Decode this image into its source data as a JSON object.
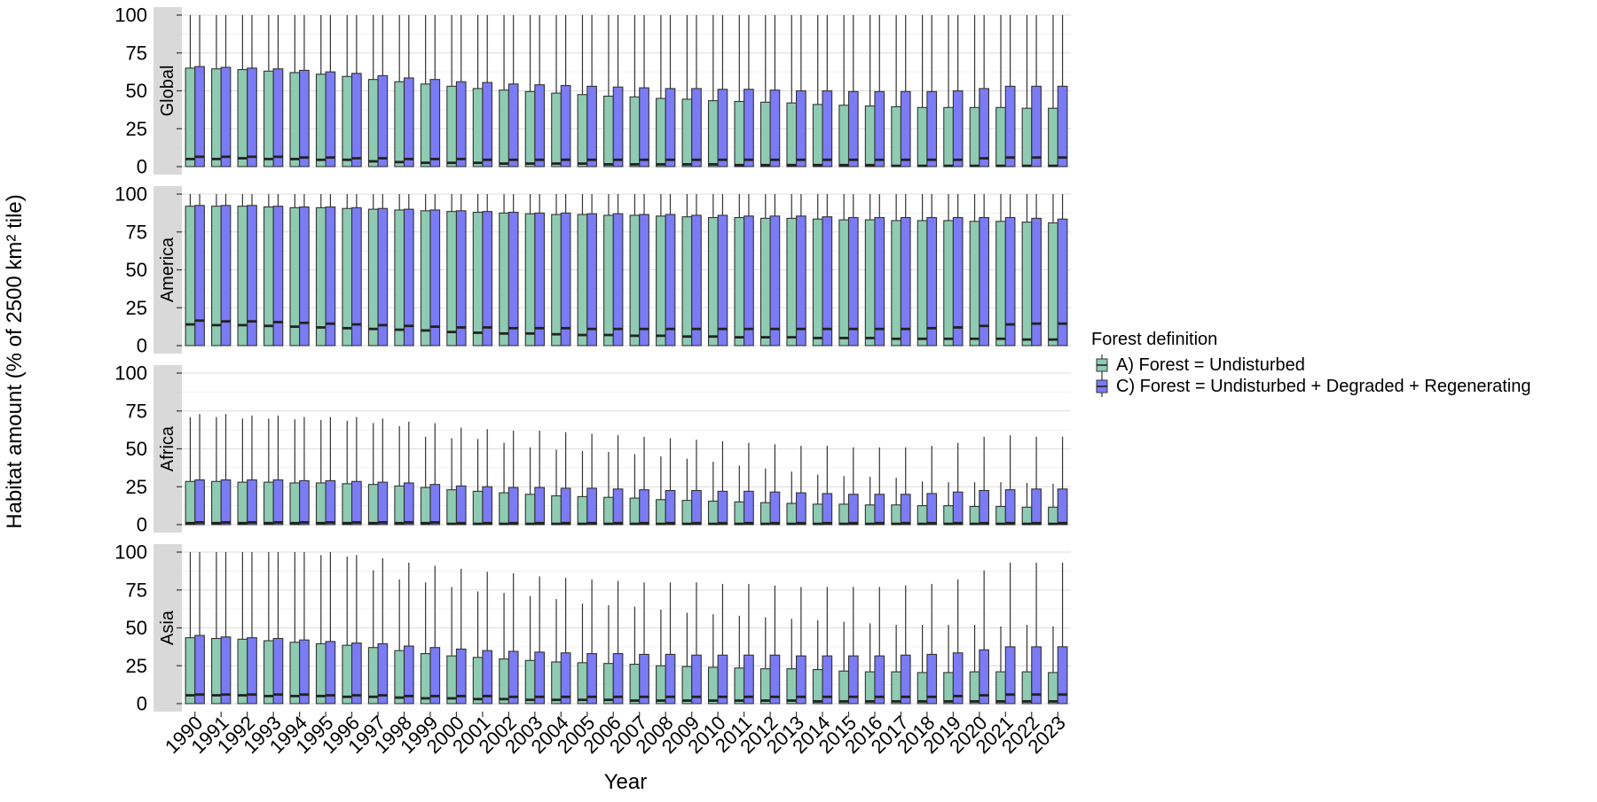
{
  "chart_data": {
    "type": "bar",
    "variant": "faceted boxplot",
    "xlabel": "Year",
    "ylabel": "Habitat amount (% of 2500 km² tile)",
    "ylim": [
      0,
      100
    ],
    "yticks": [
      "0",
      "25",
      "50",
      "75",
      "100"
    ],
    "grid": true,
    "legend_placement": "right",
    "legend_title": "Forest definition",
    "categories": [
      "1990",
      "1991",
      "1992",
      "1993",
      "1994",
      "1995",
      "1996",
      "1997",
      "1998",
      "1999",
      "2000",
      "2001",
      "2002",
      "2003",
      "2004",
      "2005",
      "2006",
      "2007",
      "2008",
      "2009",
      "2010",
      "2011",
      "2012",
      "2013",
      "2014",
      "2015",
      "2016",
      "2017",
      "2018",
      "2019",
      "2020",
      "2021",
      "2022",
      "2023"
    ],
    "series": [
      {
        "name": "A) Forest = Undisturbed",
        "color": "#8ECBB2"
      },
      {
        "name": "C) Forest = Undisturbed + Degraded + Regenerating",
        "color": "#7B7BF5"
      }
    ],
    "panels": [
      {
        "strip": "Global",
        "A": {
          "q3": [
            65,
            64.5,
            64,
            63,
            62,
            61,
            59.5,
            57.5,
            56,
            54.5,
            53,
            51.5,
            50.5,
            49.5,
            48.5,
            47.5,
            46.5,
            46,
            45,
            44.5,
            43.5,
            43,
            42.5,
            42,
            41,
            40.5,
            40,
            39.5,
            39,
            39,
            39,
            39,
            38.5,
            38.5
          ],
          "median": [
            5,
            5,
            5.5,
            5,
            5,
            4.5,
            4.5,
            3.5,
            3,
            2.5,
            2.5,
            2.5,
            2,
            2,
            2,
            2,
            1.5,
            1.5,
            1.5,
            1.5,
            1.5,
            1,
            1,
            1,
            1,
            1,
            1,
            0.5,
            0.5,
            0.5,
            0.5,
            0.5,
            0.5,
            0.5
          ],
          "whisker_high": [
            100,
            100,
            100,
            100,
            100,
            100,
            100,
            100,
            100,
            100,
            100,
            100,
            100,
            100,
            100,
            100,
            100,
            100,
            100,
            100,
            100,
            100,
            100,
            100,
            100,
            100,
            100,
            100,
            100,
            100,
            100,
            100,
            100,
            100
          ]
        },
        "C": {
          "q3": [
            66,
            65.5,
            65,
            64.5,
            63.5,
            62.5,
            61.5,
            60,
            58.5,
            57.5,
            56,
            55.5,
            54.5,
            54,
            53.5,
            53,
            52.5,
            52,
            51.5,
            51.5,
            51,
            51,
            50.5,
            50,
            50,
            49.5,
            49.5,
            49.5,
            49.5,
            50,
            51.5,
            53,
            53,
            53
          ],
          "median": [
            6.5,
            6.5,
            6.5,
            6.5,
            6,
            6,
            5.5,
            5.5,
            5,
            5,
            5,
            4.5,
            4.5,
            4.5,
            4.5,
            4.5,
            4.5,
            4.5,
            4.5,
            4.5,
            4.5,
            4.5,
            4.5,
            4.5,
            4.5,
            4.5,
            4.5,
            4.5,
            4.5,
            4.5,
            5.5,
            6,
            6,
            6
          ],
          "whisker_high": [
            100,
            100,
            100,
            100,
            100,
            100,
            100,
            100,
            100,
            100,
            100,
            100,
            100,
            100,
            100,
            100,
            100,
            100,
            100,
            100,
            100,
            100,
            100,
            100,
            100,
            100,
            100,
            100,
            100,
            100,
            100,
            100,
            100,
            100
          ]
        }
      },
      {
        "strip": "America",
        "A": {
          "q3": [
            92,
            92,
            92,
            91.5,
            91,
            91,
            90.5,
            90,
            89.5,
            89,
            88.5,
            88,
            87.5,
            87,
            86.5,
            86.5,
            86,
            86,
            85.5,
            85,
            84.5,
            84.5,
            84,
            84,
            83.5,
            83,
            83,
            82.5,
            82.5,
            82.5,
            82,
            82,
            81.5,
            81
          ],
          "median": [
            14,
            13.5,
            13.5,
            13,
            12.5,
            12,
            11.5,
            11,
            10.5,
            10,
            9,
            8.5,
            8,
            8,
            7.5,
            7,
            7,
            6.5,
            6.5,
            6,
            6,
            5.5,
            5.5,
            5.5,
            5,
            5,
            5,
            4.5,
            4.5,
            4.5,
            4.5,
            4.5,
            4,
            4
          ],
          "whisker_high": [
            100,
            100,
            100,
            100,
            100,
            100,
            100,
            100,
            100,
            100,
            100,
            100,
            100,
            100,
            100,
            100,
            100,
            100,
            100,
            100,
            100,
            100,
            100,
            100,
            100,
            100,
            100,
            100,
            100,
            100,
            100,
            100,
            100,
            100
          ]
        },
        "C": {
          "q3": [
            92.5,
            92.5,
            92.5,
            92,
            91.5,
            91.5,
            91,
            90.5,
            90,
            89.5,
            89,
            88.5,
            88,
            87.5,
            87.5,
            87,
            87,
            86.5,
            86.5,
            86,
            86,
            85.5,
            85.5,
            85.5,
            85,
            84.5,
            84.5,
            84.5,
            84.5,
            84.5,
            84.5,
            84.5,
            84,
            83.5
          ],
          "median": [
            16.5,
            16,
            16,
            15.5,
            15,
            14.5,
            14,
            13.5,
            13,
            12.5,
            12,
            12,
            11.5,
            11.5,
            11.5,
            11,
            11,
            11,
            11,
            11,
            11,
            11,
            11,
            11,
            11,
            11,
            11,
            11,
            11.5,
            12,
            13,
            14,
            14.5,
            14.5
          ],
          "whisker_high": [
            100,
            100,
            100,
            100,
            100,
            100,
            100,
            100,
            100,
            100,
            100,
            100,
            100,
            100,
            100,
            100,
            100,
            100,
            100,
            100,
            100,
            100,
            100,
            100,
            100,
            100,
            100,
            100,
            100,
            100,
            100,
            100,
            100,
            100
          ]
        }
      },
      {
        "strip": "Africa",
        "A": {
          "q3": [
            28.5,
            28.5,
            28,
            28,
            27.5,
            27.5,
            27,
            26.5,
            25.5,
            24.5,
            23,
            22,
            21,
            20,
            19,
            18.5,
            18,
            17.5,
            16.5,
            16,
            15.5,
            15,
            14.5,
            14,
            13.5,
            13.5,
            13,
            13,
            12.5,
            12.5,
            12,
            12,
            11.5,
            11.5
          ],
          "median": [
            1,
            1,
            1,
            1,
            1,
            1,
            1,
            1,
            1,
            1,
            0.5,
            0.5,
            0.5,
            0.5,
            0.5,
            0.5,
            0.5,
            0.5,
            0.5,
            0.5,
            0.5,
            0.5,
            0.5,
            0.5,
            0.5,
            0.5,
            0.5,
            0.5,
            0.5,
            0.5,
            0.5,
            0.5,
            0.5,
            0.5
          ],
          "whisker_high": [
            71,
            71,
            70,
            70,
            69.5,
            69,
            68.5,
            67,
            65,
            58,
            57,
            56.5,
            54,
            51,
            49.5,
            48.5,
            48,
            46.5,
            45,
            43.5,
            41.5,
            39,
            37,
            35,
            33,
            32,
            31.5,
            31,
            28.5,
            28,
            28,
            28,
            27.5,
            27
          ]
        },
        "C": {
          "q3": [
            29.5,
            29.5,
            29.5,
            29.5,
            29,
            29,
            28.5,
            28,
            27.5,
            26.5,
            25.5,
            25,
            24.5,
            24.5,
            24,
            24,
            23.5,
            23,
            22.5,
            22.5,
            22,
            22,
            21.5,
            21,
            20.5,
            20,
            20,
            20,
            20.5,
            21.5,
            22.5,
            23,
            23.5,
            23.5
          ],
          "median": [
            1.5,
            1.5,
            1.5,
            1.5,
            1.5,
            1.5,
            1.5,
            1.5,
            1.5,
            1.5,
            1,
            1,
            1,
            1,
            1,
            1,
            1,
            1,
            1,
            1,
            1,
            1,
            1,
            1,
            1,
            1,
            1,
            1,
            1,
            1,
            1,
            1,
            1,
            1
          ],
          "whisker_high": [
            73,
            73,
            72,
            72,
            71,
            71,
            71,
            70,
            68,
            67,
            64,
            63,
            62,
            62,
            61,
            60,
            59,
            58,
            57,
            56,
            55,
            54,
            53,
            52,
            52,
            51,
            51,
            51,
            52,
            54,
            58,
            59,
            58,
            58
          ]
        }
      },
      {
        "strip": "Asia",
        "A": {
          "q3": [
            43.5,
            43,
            42.5,
            41.5,
            40.5,
            39.5,
            38.5,
            37,
            35,
            33,
            31.5,
            30.5,
            29.5,
            28.5,
            27.5,
            27,
            26.5,
            26,
            25,
            24.5,
            24,
            23.5,
            23,
            23,
            22.5,
            21.5,
            21,
            21,
            20.5,
            20.5,
            21,
            21,
            21,
            20.5
          ],
          "median": [
            5.5,
            5.5,
            5.5,
            5,
            5,
            5,
            4.5,
            4.5,
            4,
            3.5,
            3.5,
            3,
            3,
            2.5,
            2.5,
            2.5,
            2.5,
            2,
            2,
            2,
            2,
            2,
            2,
            2,
            1.5,
            1.5,
            1.5,
            1.5,
            1.5,
            1.5,
            1.5,
            1.5,
            1.5,
            1.5
          ],
          "whisker_high": [
            100,
            100,
            100,
            100,
            100,
            98,
            97,
            88,
            82,
            80,
            77,
            74,
            73,
            71,
            69,
            66,
            65,
            64,
            62,
            60,
            59,
            58,
            57,
            56,
            55,
            54,
            53,
            52,
            52,
            52,
            52,
            51,
            52,
            51
          ]
        },
        "C": {
          "q3": [
            45,
            44,
            43.5,
            43,
            42,
            41,
            40,
            39.5,
            38,
            37,
            36,
            35,
            34.5,
            34,
            33.5,
            33,
            33,
            32.5,
            32.5,
            32,
            32,
            32,
            32,
            31.5,
            31.5,
            31.5,
            31.5,
            32,
            32.5,
            33.5,
            35.5,
            37.5,
            37.5,
            37.5
          ],
          "median": [
            6,
            6,
            6,
            6,
            6,
            5.5,
            5.5,
            5.5,
            5,
            5,
            5,
            5,
            4.5,
            4.5,
            4.5,
            4.5,
            4.5,
            4.5,
            4.5,
            4.5,
            4.5,
            4.5,
            4.5,
            4.5,
            4.5,
            4.5,
            4.5,
            4.5,
            4.5,
            5,
            5.5,
            6,
            6,
            6
          ],
          "whisker_high": [
            100,
            100,
            100,
            100,
            100,
            100,
            98,
            96,
            93,
            91,
            89,
            87,
            86,
            84,
            83,
            82,
            81,
            80,
            80,
            80,
            79,
            79,
            78,
            77,
            77,
            77,
            77,
            78,
            79,
            82,
            88,
            93,
            93,
            93
          ]
        }
      }
    ]
  }
}
